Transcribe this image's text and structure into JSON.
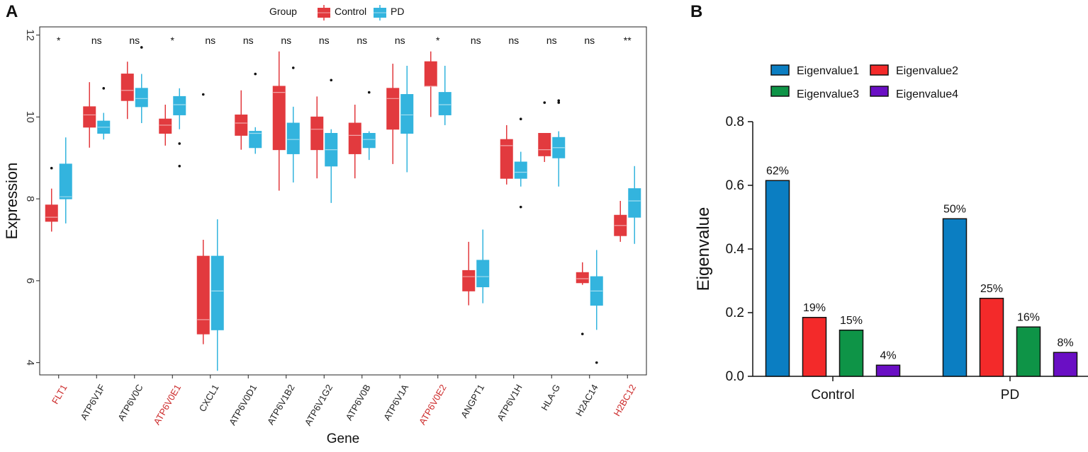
{
  "panel_a_label": "A",
  "panel_b_label": "B",
  "chart_data": [
    {
      "type": "box",
      "title": "",
      "xlabel": "Gene",
      "ylabel": "Expression",
      "ylim": [
        3.7,
        12.2
      ],
      "yticks": [
        4,
        6,
        8,
        10,
        12
      ],
      "legend": {
        "title": "Group",
        "placement": "top",
        "entries": [
          "Control",
          "PD"
        ]
      },
      "colors": {
        "Control": "#e23a3e",
        "PD": "#33b4de",
        "highlight_label": "#cc2a2a",
        "normal_label": "#222222"
      },
      "genes": [
        {
          "name": "FLT1",
          "highlight": true,
          "sig": "*",
          "control": {
            "min": 7.2,
            "q1": 7.45,
            "median": 7.55,
            "q3": 7.85,
            "max": 8.25,
            "outliers": [
              8.75
            ]
          },
          "pd": {
            "min": 7.4,
            "q1": 8.0,
            "median": 8.05,
            "q3": 8.85,
            "max": 9.5,
            "outliers": []
          }
        },
        {
          "name": "ATP6V1F",
          "highlight": false,
          "sig": "ns",
          "control": {
            "min": 9.25,
            "q1": 9.75,
            "median": 10.05,
            "q3": 10.25,
            "max": 10.85,
            "outliers": []
          },
          "pd": {
            "min": 9.45,
            "q1": 9.6,
            "median": 9.75,
            "q3": 9.9,
            "max": 10.1,
            "outliers": [
              10.7
            ]
          }
        },
        {
          "name": "ATP6V0C",
          "highlight": false,
          "sig": "ns",
          "control": {
            "min": 9.95,
            "q1": 10.4,
            "median": 10.65,
            "q3": 11.05,
            "max": 11.35,
            "outliers": []
          },
          "pd": {
            "min": 9.85,
            "q1": 10.25,
            "median": 10.45,
            "q3": 10.7,
            "max": 11.05,
            "outliers": [
              11.7
            ]
          }
        },
        {
          "name": "ATP6V0E1",
          "highlight": true,
          "sig": "*",
          "control": {
            "min": 9.3,
            "q1": 9.6,
            "median": 9.8,
            "q3": 9.95,
            "max": 10.3,
            "outliers": []
          },
          "pd": {
            "min": 9.7,
            "q1": 10.05,
            "median": 10.3,
            "q3": 10.5,
            "max": 10.7,
            "outliers": [
              9.35,
              8.8
            ]
          }
        },
        {
          "name": "CXCL1",
          "highlight": false,
          "sig": "ns",
          "control": {
            "min": 4.45,
            "q1": 4.7,
            "median": 5.05,
            "q3": 6.6,
            "max": 7.0,
            "outliers": [
              10.55
            ]
          },
          "pd": {
            "min": 3.8,
            "q1": 4.8,
            "median": 5.75,
            "q3": 6.6,
            "max": 7.5,
            "outliers": []
          }
        },
        {
          "name": "ATP6V0D1",
          "highlight": false,
          "sig": "ns",
          "control": {
            "min": 9.2,
            "q1": 9.55,
            "median": 9.85,
            "q3": 10.05,
            "max": 10.65,
            "outliers": []
          },
          "pd": {
            "min": 9.1,
            "q1": 9.25,
            "median": 9.6,
            "q3": 9.65,
            "max": 9.75,
            "outliers": [
              11.05
            ]
          }
        },
        {
          "name": "ATP6V1B2",
          "highlight": false,
          "sig": "ns",
          "control": {
            "min": 8.2,
            "q1": 9.2,
            "median": 10.6,
            "q3": 10.75,
            "max": 11.6,
            "outliers": []
          },
          "pd": {
            "min": 8.4,
            "q1": 9.1,
            "median": 9.45,
            "q3": 9.85,
            "max": 10.25,
            "outliers": [
              11.2
            ]
          }
        },
        {
          "name": "ATP6V1G2",
          "highlight": false,
          "sig": "ns",
          "control": {
            "min": 8.5,
            "q1": 9.2,
            "median": 9.7,
            "q3": 10.0,
            "max": 10.5,
            "outliers": []
          },
          "pd": {
            "min": 7.9,
            "q1": 8.8,
            "median": 9.2,
            "q3": 9.6,
            "max": 9.7,
            "outliers": [
              10.9
            ]
          }
        },
        {
          "name": "ATP6V0B",
          "highlight": false,
          "sig": "ns",
          "control": {
            "min": 8.5,
            "q1": 9.1,
            "median": 9.55,
            "q3": 9.85,
            "max": 10.3,
            "outliers": []
          },
          "pd": {
            "min": 8.95,
            "q1": 9.25,
            "median": 9.45,
            "q3": 9.6,
            "max": 9.65,
            "outliers": [
              10.6
            ]
          }
        },
        {
          "name": "ATP6V1A",
          "highlight": false,
          "sig": "ns",
          "control": {
            "min": 8.85,
            "q1": 9.7,
            "median": 10.45,
            "q3": 10.7,
            "max": 11.3,
            "outliers": []
          },
          "pd": {
            "min": 8.65,
            "q1": 9.6,
            "median": 10.05,
            "q3": 10.55,
            "max": 11.25,
            "outliers": []
          }
        },
        {
          "name": "ATP6V0E2",
          "highlight": true,
          "sig": "*",
          "control": {
            "min": 10.0,
            "q1": 10.75,
            "median": 10.75,
            "q3": 11.35,
            "max": 11.6,
            "outliers": []
          },
          "pd": {
            "min": 9.8,
            "q1": 10.05,
            "median": 10.3,
            "q3": 10.6,
            "max": 11.25,
            "outliers": []
          }
        },
        {
          "name": "ANGPT1",
          "highlight": false,
          "sig": "ns",
          "control": {
            "min": 5.4,
            "q1": 5.75,
            "median": 6.1,
            "q3": 6.25,
            "max": 6.95,
            "outliers": []
          },
          "pd": {
            "min": 5.45,
            "q1": 5.85,
            "median": 6.1,
            "q3": 6.5,
            "max": 7.25,
            "outliers": []
          }
        },
        {
          "name": "ATP6V1H",
          "highlight": false,
          "sig": "ns",
          "control": {
            "min": 8.35,
            "q1": 8.5,
            "median": 9.3,
            "q3": 9.45,
            "max": 9.8,
            "outliers": []
          },
          "pd": {
            "min": 8.3,
            "q1": 8.5,
            "median": 8.65,
            "q3": 8.9,
            "max": 9.15,
            "outliers": [
              9.95,
              7.8
            ]
          }
        },
        {
          "name": "HLA-G",
          "highlight": false,
          "sig": "ns",
          "control": {
            "min": 8.9,
            "q1": 9.05,
            "median": 9.2,
            "q3": 9.6,
            "max": 9.6,
            "outliers": [
              10.35
            ]
          },
          "pd": {
            "min": 8.3,
            "q1": 9.0,
            "median": 9.25,
            "q3": 9.5,
            "max": 9.65,
            "outliers": [
              10.4,
              10.35
            ]
          }
        },
        {
          "name": "H2AC14",
          "highlight": false,
          "sig": "ns",
          "control": {
            "min": 5.9,
            "q1": 5.95,
            "median": 6.05,
            "q3": 6.2,
            "max": 6.45,
            "outliers": [
              4.7
            ]
          },
          "pd": {
            "min": 4.8,
            "q1": 5.4,
            "median": 5.75,
            "q3": 6.1,
            "max": 6.75,
            "outliers": [
              4.0
            ]
          }
        },
        {
          "name": "H2BC12",
          "highlight": true,
          "sig": "**",
          "control": {
            "min": 6.95,
            "q1": 7.1,
            "median": 7.35,
            "q3": 7.6,
            "max": 7.95,
            "outliers": []
          },
          "pd": {
            "min": 6.9,
            "q1": 7.55,
            "median": 7.95,
            "q3": 8.25,
            "max": 8.8,
            "outliers": []
          }
        }
      ]
    },
    {
      "type": "bar",
      "title": "",
      "xlabel": "",
      "ylabel": "Eigenvalue",
      "ylim": [
        0,
        0.8
      ],
      "yticks": [
        0.0,
        0.2,
        0.4,
        0.6,
        0.8
      ],
      "yticklabels": [
        "0.0",
        "0.2",
        "0.4",
        "0.6",
        "0.8"
      ],
      "categories": [
        "Control",
        "PD"
      ],
      "legend_placement": "top",
      "series": [
        {
          "name": "Eigenvalue1",
          "color": "#0b7ec2",
          "values": [
            0.615,
            0.495
          ],
          "labels": [
            "62%",
            "50%"
          ]
        },
        {
          "name": "Eigenvalue2",
          "color": "#f32a2a",
          "values": [
            0.185,
            0.245
          ],
          "labels": [
            "19%",
            "25%"
          ]
        },
        {
          "name": "Eigenvalue3",
          "color": "#0e9447",
          "values": [
            0.145,
            0.155
          ],
          "labels": [
            "15%",
            "16%"
          ]
        },
        {
          "name": "Eigenvalue4",
          "color": "#6a0fc4",
          "values": [
            0.035,
            0.075
          ],
          "labels": [
            "4%",
            "8%"
          ]
        }
      ]
    }
  ]
}
